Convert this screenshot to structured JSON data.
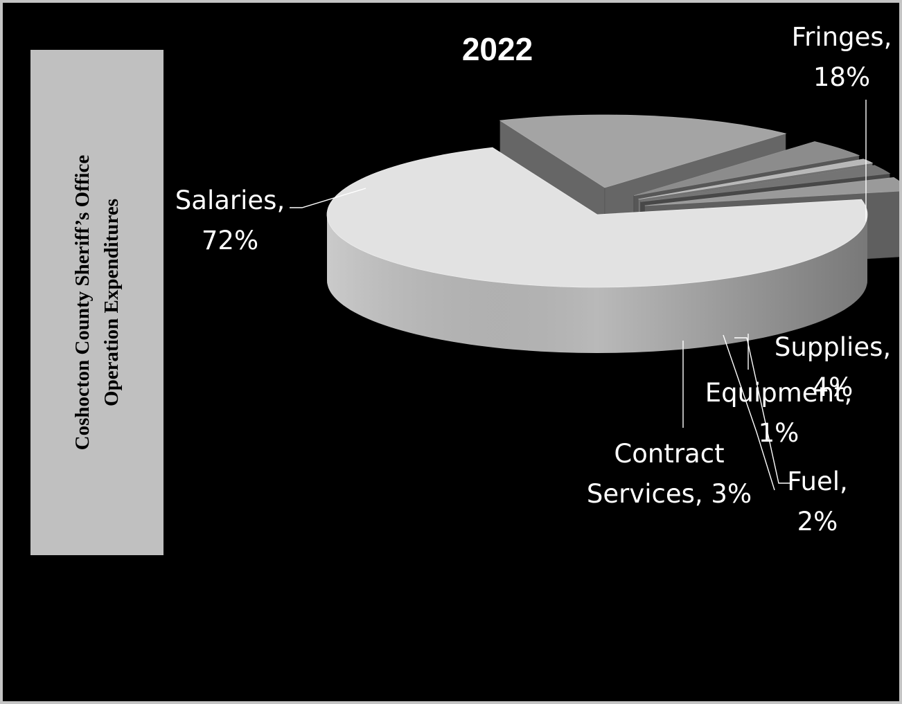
{
  "side_title": {
    "line1": "Coshocton County Sheriff’s Office",
    "line2": "Operation Expenditures"
  },
  "chart_data": {
    "type": "pie",
    "title": "2022",
    "categories": [
      "Salaries",
      "Fringes",
      "Supplies",
      "Equipment",
      "Fuel",
      "Contract Services"
    ],
    "values": [
      72,
      18,
      4,
      1,
      2,
      3
    ],
    "unit": "%",
    "data_labels": [
      {
        "category": "Salaries",
        "lines": [
          "Salaries,",
          "72%"
        ]
      },
      {
        "category": "Fringes",
        "lines": [
          "Fringes,",
          "18%"
        ]
      },
      {
        "category": "Supplies",
        "lines": [
          "Supplies,",
          "4%"
        ]
      },
      {
        "category": "Equipment",
        "lines": [
          "Equipment,",
          "1%"
        ]
      },
      {
        "category": "Fuel",
        "lines": [
          "Fuel,",
          "2%"
        ]
      },
      {
        "category": "Contract Services",
        "lines": [
          "Contract",
          "Services, 3%"
        ]
      }
    ],
    "legend": "none",
    "three_d": true,
    "colors": {
      "Salaries": "#e2e2e2",
      "Fringes": "#a4a4a4",
      "Supplies": "#8c8c8c",
      "Equipment": "#b8b8b8",
      "Fuel": "#747474",
      "Contract Services": "#9a9a9a",
      "leader_line": "#ffffff"
    }
  }
}
